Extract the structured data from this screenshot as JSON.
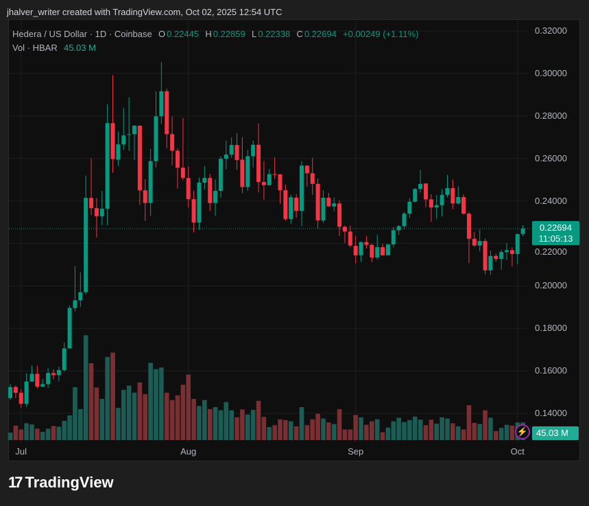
{
  "credit": "jhalver_writer created with TradingView.com, Oct 02, 2025 12:54 UTC",
  "legend": {
    "symbol": "Hedera / US Dollar · 1D · Coinbase",
    "o_label": "O",
    "o": "0.22445",
    "h_label": "H",
    "h": "0.22859",
    "l_label": "L",
    "l": "0.22338",
    "c_label": "C",
    "c": "0.22694",
    "change": "+0.00249 (+1.11%)",
    "vol_label": "Vol · HBAR",
    "vol": "45.03 M"
  },
  "price_label": {
    "price": "0.22694",
    "countdown": "11:05:13"
  },
  "volume_label": "45.03 M",
  "footer": {
    "logo_mark": "17",
    "logo_text": "TradingView"
  },
  "colors": {
    "up": "#089981",
    "down": "#f23645",
    "vol_up": "#1d5c55",
    "vol_down": "#7a2f33",
    "background": "#0f0f0f",
    "grid": "#1f1f1f"
  },
  "chart_data": {
    "type": "candlestick",
    "title": "Hedera / US Dollar · 1D · Coinbase",
    "y_ticks": [
      "0.32000",
      "0.30000",
      "0.28000",
      "0.26000",
      "0.24000",
      "0.22000",
      "0.20000",
      "0.18000",
      "0.16000",
      "0.14000"
    ],
    "ylim": [
      0.1275,
      0.3345
    ],
    "x_ticks": [
      {
        "label": "Jul",
        "date": "2025-07-01"
      },
      {
        "label": "Aug",
        "date": "2025-08-01"
      },
      {
        "label": "Sep",
        "date": "2025-09-01"
      },
      {
        "label": "Oct",
        "date": "2025-10-01"
      }
    ],
    "grid": true,
    "volume_unit": "M",
    "candles_fields": [
      "date",
      "open",
      "high",
      "low",
      "close",
      "volume"
    ],
    "candles": [
      [
        "2025-06-29",
        0.1472,
        0.1538,
        0.1464,
        0.1524,
        19
      ],
      [
        "2025-06-30",
        0.1524,
        0.1532,
        0.1472,
        0.1497,
        37
      ],
      [
        "2025-07-01",
        0.1497,
        0.1512,
        0.1427,
        0.1445,
        27
      ],
      [
        "2025-07-02",
        0.1445,
        0.1589,
        0.143,
        0.155,
        43
      ],
      [
        "2025-07-03",
        0.155,
        0.1625,
        0.1548,
        0.1586,
        40
      ],
      [
        "2025-07-04",
        0.1586,
        0.1625,
        0.1517,
        0.1526,
        29
      ],
      [
        "2025-07-05",
        0.1526,
        0.1562,
        0.1524,
        0.1538,
        21
      ],
      [
        "2025-07-06",
        0.1538,
        0.1613,
        0.152,
        0.159,
        29
      ],
      [
        "2025-07-07",
        0.159,
        0.1608,
        0.156,
        0.158,
        36
      ],
      [
        "2025-07-08",
        0.158,
        0.162,
        0.155,
        0.1604,
        34
      ],
      [
        "2025-07-09",
        0.1604,
        0.1733,
        0.1596,
        0.1706,
        49
      ],
      [
        "2025-07-10",
        0.1706,
        0.1908,
        0.1704,
        0.1896,
        63
      ],
      [
        "2025-07-11",
        0.1896,
        0.2093,
        0.188,
        0.1932,
        135
      ],
      [
        "2025-07-12",
        0.1932,
        0.2064,
        0.1901,
        0.197,
        79
      ],
      [
        "2025-07-13",
        0.197,
        0.2519,
        0.1961,
        0.2414,
        267
      ],
      [
        "2025-07-14",
        0.2414,
        0.26,
        0.2333,
        0.2366,
        196
      ],
      [
        "2025-07-15",
        0.2366,
        0.2414,
        0.2228,
        0.2328,
        134
      ],
      [
        "2025-07-16",
        0.2328,
        0.2447,
        0.2285,
        0.2363,
        105
      ],
      [
        "2025-07-17",
        0.2363,
        0.2855,
        0.2285,
        0.2766,
        212
      ],
      [
        "2025-07-18",
        0.2766,
        0.2993,
        0.2532,
        0.2597,
        223
      ],
      [
        "2025-07-19",
        0.2594,
        0.2726,
        0.2564,
        0.2666,
        82
      ],
      [
        "2025-07-20",
        0.2666,
        0.2838,
        0.264,
        0.2708,
        128
      ],
      [
        "2025-07-21",
        0.2712,
        0.2888,
        0.2636,
        0.2714,
        139
      ],
      [
        "2025-07-22",
        0.2714,
        0.2756,
        0.2592,
        0.2754,
        121
      ],
      [
        "2025-07-23",
        0.2754,
        0.2756,
        0.2382,
        0.245,
        147
      ],
      [
        "2025-07-24",
        0.245,
        0.2502,
        0.2306,
        0.239,
        117
      ],
      [
        "2025-07-25",
        0.239,
        0.2645,
        0.233,
        0.2587,
        197
      ],
      [
        "2025-07-26",
        0.2587,
        0.2915,
        0.2558,
        0.2798,
        181
      ],
      [
        "2025-07-27",
        0.2798,
        0.3053,
        0.2762,
        0.2916,
        185
      ],
      [
        "2025-07-28",
        0.2916,
        0.2928,
        0.2648,
        0.2714,
        121
      ],
      [
        "2025-07-29",
        0.2714,
        0.2796,
        0.2568,
        0.2636,
        102
      ],
      [
        "2025-07-30",
        0.2636,
        0.2648,
        0.2458,
        0.2556,
        114
      ],
      [
        "2025-07-31",
        0.2556,
        0.279,
        0.2498,
        0.2508,
        141
      ],
      [
        "2025-08-01",
        0.2508,
        0.2562,
        0.2369,
        0.2408,
        167
      ],
      [
        "2025-08-02",
        0.2408,
        0.2448,
        0.2252,
        0.2298,
        105
      ],
      [
        "2025-08-03",
        0.2298,
        0.251,
        0.2264,
        0.2486,
        87
      ],
      [
        "2025-08-04",
        0.2486,
        0.2564,
        0.2454,
        0.2508,
        102
      ],
      [
        "2025-08-05",
        0.2508,
        0.2528,
        0.2352,
        0.239,
        79
      ],
      [
        "2025-08-06",
        0.239,
        0.2501,
        0.233,
        0.2447,
        84
      ],
      [
        "2025-08-07",
        0.2447,
        0.261,
        0.2414,
        0.2598,
        76
      ],
      [
        "2025-08-08",
        0.2598,
        0.2684,
        0.2549,
        0.2618,
        97
      ],
      [
        "2025-08-09",
        0.2618,
        0.2699,
        0.2604,
        0.2663,
        76
      ],
      [
        "2025-08-10",
        0.2663,
        0.272,
        0.2546,
        0.2592,
        58
      ],
      [
        "2025-08-11",
        0.2594,
        0.27,
        0.2436,
        0.2465,
        78
      ],
      [
        "2025-08-12",
        0.2465,
        0.264,
        0.2447,
        0.261,
        65
      ],
      [
        "2025-08-13",
        0.261,
        0.2684,
        0.2558,
        0.2664,
        77
      ],
      [
        "2025-08-14",
        0.2664,
        0.2765,
        0.2441,
        0.2489,
        100
      ],
      [
        "2025-08-15",
        0.2489,
        0.2588,
        0.2406,
        0.2474,
        59
      ],
      [
        "2025-08-16",
        0.2474,
        0.255,
        0.2472,
        0.2526,
        33
      ],
      [
        "2025-08-17",
        0.2526,
        0.2606,
        0.2504,
        0.2525,
        38
      ],
      [
        "2025-08-18",
        0.2525,
        0.2526,
        0.2387,
        0.245,
        53
      ],
      [
        "2025-08-19",
        0.245,
        0.2477,
        0.2306,
        0.2315,
        51
      ],
      [
        "2025-08-20",
        0.2315,
        0.2429,
        0.2292,
        0.2417,
        48
      ],
      [
        "2025-08-21",
        0.2415,
        0.2431,
        0.2321,
        0.2353,
        35
      ],
      [
        "2025-08-22",
        0.2353,
        0.2587,
        0.2281,
        0.2566,
        84
      ],
      [
        "2025-08-23",
        0.2566,
        0.2568,
        0.2467,
        0.253,
        38
      ],
      [
        "2025-08-24",
        0.253,
        0.2603,
        0.2428,
        0.248,
        53
      ],
      [
        "2025-08-25",
        0.248,
        0.2506,
        0.227,
        0.2308,
        67
      ],
      [
        "2025-08-26",
        0.2308,
        0.245,
        0.2297,
        0.2415,
        55
      ],
      [
        "2025-08-27",
        0.2415,
        0.2437,
        0.2372,
        0.2374,
        45
      ],
      [
        "2025-08-28",
        0.2374,
        0.2417,
        0.2351,
        0.2388,
        41
      ],
      [
        "2025-08-29",
        0.2388,
        0.2402,
        0.2235,
        0.2278,
        79
      ],
      [
        "2025-08-30",
        0.2278,
        0.2284,
        0.2202,
        0.2256,
        27
      ],
      [
        "2025-08-31",
        0.2256,
        0.2284,
        0.2181,
        0.219,
        27
      ],
      [
        "2025-09-01",
        0.2188,
        0.2235,
        0.2106,
        0.2144,
        64
      ],
      [
        "2025-09-02",
        0.2144,
        0.2209,
        0.2114,
        0.2206,
        58
      ],
      [
        "2025-09-03",
        0.2206,
        0.2235,
        0.2176,
        0.2193,
        39
      ],
      [
        "2025-09-04",
        0.2193,
        0.2198,
        0.2111,
        0.2134,
        48
      ],
      [
        "2025-09-05",
        0.2134,
        0.2241,
        0.2125,
        0.2182,
        53
      ],
      [
        "2025-09-06",
        0.2182,
        0.2198,
        0.2141,
        0.2144,
        20
      ],
      [
        "2025-09-07",
        0.2144,
        0.2198,
        0.2144,
        0.2195,
        32
      ],
      [
        "2025-09-08",
        0.2195,
        0.2277,
        0.2181,
        0.2262,
        48
      ],
      [
        "2025-09-09",
        0.2262,
        0.2286,
        0.2239,
        0.2281,
        57
      ],
      [
        "2025-09-10",
        0.2281,
        0.2349,
        0.2267,
        0.234,
        46
      ],
      [
        "2025-09-11",
        0.234,
        0.2413,
        0.2321,
        0.2396,
        51
      ],
      [
        "2025-09-12",
        0.2396,
        0.246,
        0.2392,
        0.2456,
        60
      ],
      [
        "2025-09-13",
        0.2456,
        0.2546,
        0.2439,
        0.248,
        52
      ],
      [
        "2025-09-14",
        0.2482,
        0.2484,
        0.237,
        0.2407,
        38
      ],
      [
        "2025-09-15",
        0.2407,
        0.2431,
        0.2302,
        0.2369,
        52
      ],
      [
        "2025-09-16",
        0.2369,
        0.2428,
        0.2316,
        0.238,
        42
      ],
      [
        "2025-09-17",
        0.238,
        0.2456,
        0.2327,
        0.2428,
        58
      ],
      [
        "2025-09-18",
        0.2428,
        0.2523,
        0.2417,
        0.246,
        55
      ],
      [
        "2025-09-19",
        0.246,
        0.2501,
        0.2361,
        0.2388,
        43
      ],
      [
        "2025-09-20",
        0.2388,
        0.2469,
        0.2383,
        0.2418,
        35
      ],
      [
        "2025-09-21",
        0.2418,
        0.2431,
        0.2335,
        0.234,
        27
      ],
      [
        "2025-09-22",
        0.234,
        0.2349,
        0.2107,
        0.2222,
        89
      ],
      [
        "2025-09-23",
        0.2222,
        0.2254,
        0.2184,
        0.219,
        44
      ],
      [
        "2025-09-24",
        0.219,
        0.2265,
        0.2163,
        0.2211,
        41
      ],
      [
        "2025-09-25",
        0.2211,
        0.2222,
        0.2055,
        0.2073,
        76
      ],
      [
        "2025-09-26",
        0.2073,
        0.2166,
        0.2052,
        0.2141,
        57
      ],
      [
        "2025-09-27",
        0.2141,
        0.2152,
        0.2114,
        0.2127,
        23
      ],
      [
        "2025-09-28",
        0.2127,
        0.217,
        0.2076,
        0.2159,
        31
      ],
      [
        "2025-09-29",
        0.2159,
        0.2202,
        0.2122,
        0.2168,
        39
      ],
      [
        "2025-09-30",
        0.2168,
        0.2181,
        0.2091,
        0.215,
        37
      ],
      [
        "2025-10-01",
        0.215,
        0.2245,
        0.2103,
        0.2244,
        45
      ],
      [
        "2025-10-02",
        0.22445,
        0.22859,
        0.22338,
        0.22694,
        45.03
      ]
    ],
    "last_price": 0.22694
  }
}
